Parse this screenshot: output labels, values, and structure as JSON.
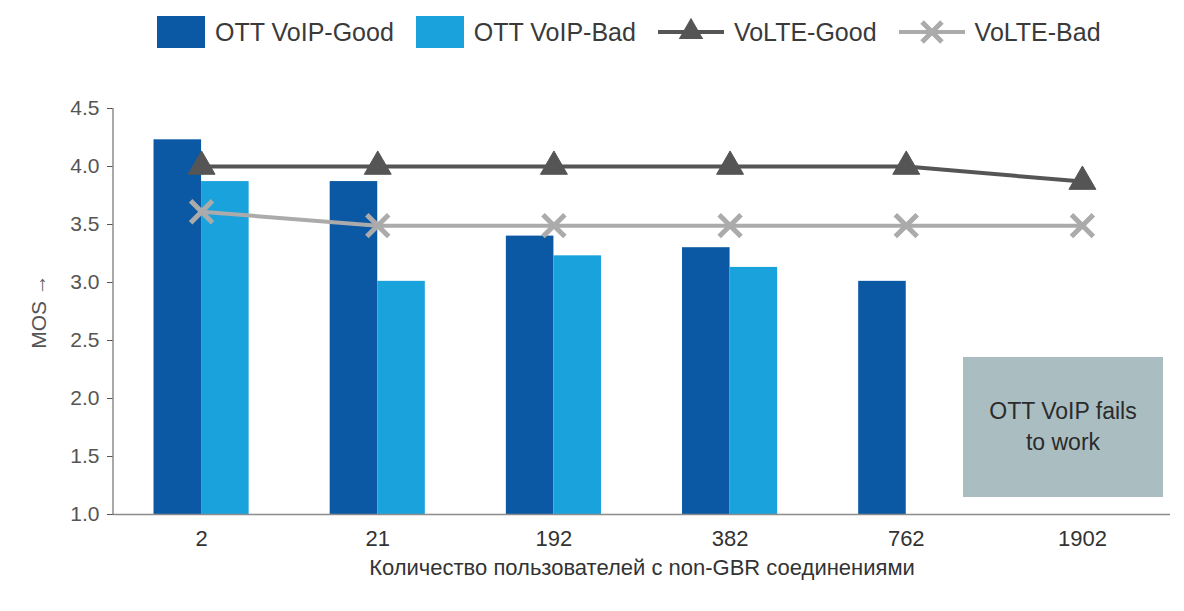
{
  "chart_data": {
    "type": "bar",
    "x_label": "Количество пользователей с non-GBR соединениями",
    "y_label": "MOS",
    "categories": [
      "2",
      "21",
      "192",
      "382",
      "762",
      "1902"
    ],
    "series": [
      {
        "name": "OTT VoIP-Good",
        "type": "bar",
        "color": "#0b58a5",
        "values": [
          4.23,
          3.87,
          3.4,
          3.3,
          3.01,
          null
        ]
      },
      {
        "name": "OTT VoIP-Bad",
        "type": "bar",
        "color": "#1aa2dc",
        "values": [
          3.87,
          3.01,
          3.23,
          3.13,
          null,
          null
        ]
      },
      {
        "name": "VoLTE-Good",
        "type": "line",
        "color": "#555555",
        "marker": "triangle",
        "values": [
          4.0,
          4.0,
          4.0,
          4.0,
          4.0,
          3.87
        ]
      },
      {
        "name": "VoLTE-Bad",
        "type": "line",
        "color": "#ababab",
        "marker": "x",
        "values": [
          3.61,
          3.49,
          3.49,
          3.49,
          3.49,
          3.49
        ]
      }
    ],
    "ylim": [
      1.0,
      4.5
    ],
    "yticks": [
      {
        "value": 1.0,
        "label": "1.0"
      },
      1.5,
      {
        "value": 2.0,
        "label": "2.0"
      },
      2.5,
      {
        "value": 3.0,
        "label": "3.0"
      },
      3.5,
      {
        "value": 4.0,
        "label": "4.0"
      },
      4.5
    ],
    "grid": false,
    "legend": "top",
    "annotations": [
      {
        "text": "OTT VoIP fails\nto work"
      }
    ]
  }
}
